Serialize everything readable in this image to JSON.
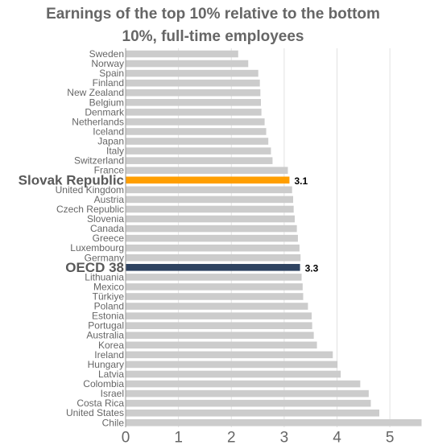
{
  "chart_data": {
    "type": "bar",
    "orientation": "horizontal",
    "title_lines": [
      "Earnings of the top 10% relative to the bottom",
      "10%, full-time employees"
    ],
    "categories": [
      "Sweden",
      "Norway",
      "Spain",
      "Finland",
      "New Zealand",
      "Belgium",
      "Denmark",
      "Netherlands",
      "Iceland",
      "Japan",
      "Italy",
      "Switzerland",
      "France",
      "Slovak Republic",
      "United Kingdom",
      "Austria",
      "Czech Republic",
      "Slovenia",
      "Canada",
      "Greece",
      "Luxembourg",
      "Germany",
      "OECD 38",
      "Lithuania",
      "Mexico",
      "Türkiye",
      "Poland",
      "Estonia",
      "Portugal",
      "Australia",
      "Korea",
      "Ireland",
      "Hungary",
      "Latvia",
      "Colombia",
      "Israel",
      "Costa Rica",
      "United States",
      "Chile"
    ],
    "values": [
      2.13,
      2.32,
      2.51,
      2.54,
      2.55,
      2.56,
      2.57,
      2.63,
      2.66,
      2.7,
      2.75,
      2.78,
      3.07,
      3.1,
      3.15,
      3.17,
      3.18,
      3.2,
      3.24,
      3.26,
      3.29,
      3.31,
      3.3,
      3.33,
      3.35,
      3.36,
      3.45,
      3.52,
      3.53,
      3.56,
      3.62,
      3.92,
      4.01,
      4.07,
      4.44,
      4.6,
      4.64,
      4.8,
      5.6
    ],
    "highlights": [
      {
        "category": "Slovak Republic",
        "label": "3.1",
        "color": "#ff9e00"
      },
      {
        "category": "OECD 38",
        "label": "3.3",
        "color": "#2e4361"
      }
    ],
    "default_color": "#cccccc",
    "xlim": [
      0,
      5.6
    ],
    "xticks": [
      0,
      1,
      2,
      3,
      4,
      5
    ],
    "xtick_labels": [
      "0",
      "1",
      "2",
      "3",
      "4",
      "5"
    ],
    "xlabel": "",
    "ylabel": "",
    "grid": true,
    "legend": "none"
  }
}
